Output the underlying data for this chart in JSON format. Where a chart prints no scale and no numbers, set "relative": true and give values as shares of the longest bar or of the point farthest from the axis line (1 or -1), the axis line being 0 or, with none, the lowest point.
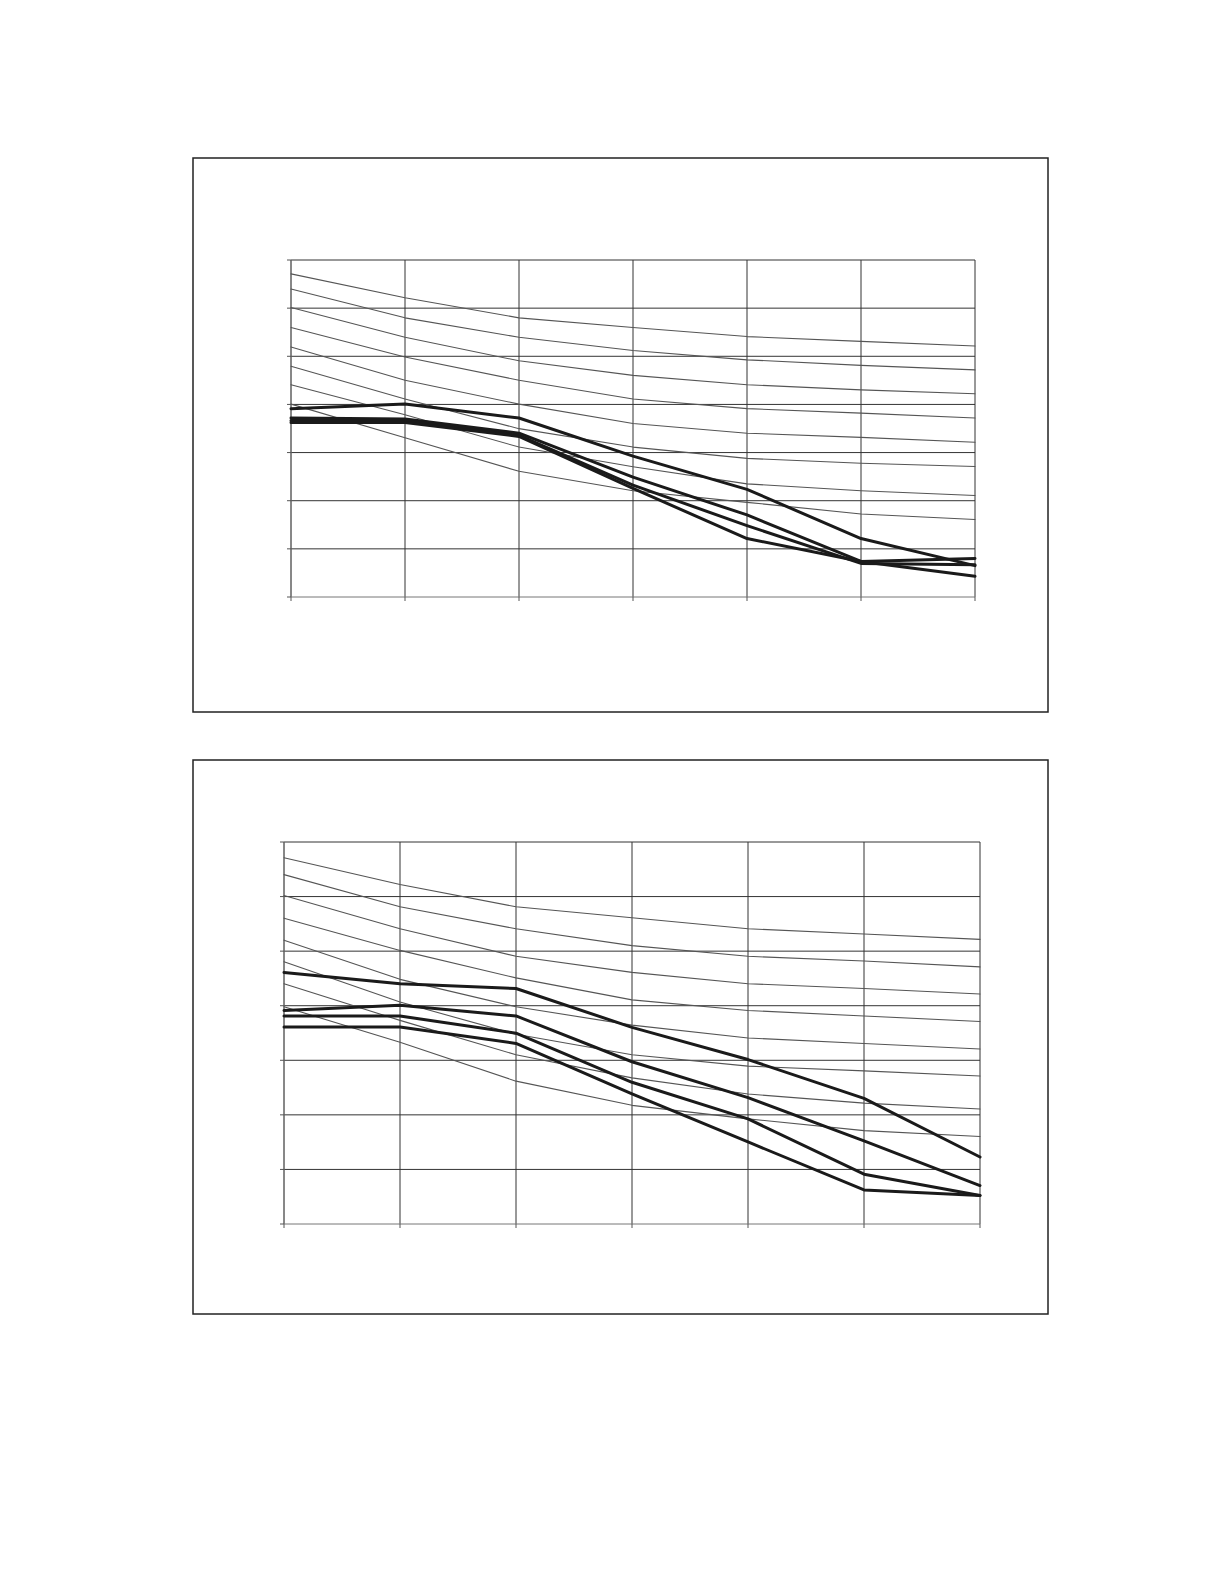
{
  "chart_data": [
    {
      "type": "line",
      "relative": true,
      "grid": true,
      "marker": "none",
      "line_style": "solid",
      "categories": [
        null,
        null,
        null,
        null,
        null,
        null,
        null
      ],
      "series": [
        {
          "color": "#555555",
          "values": [
            1.0,
            0.926,
            0.864,
            0.834,
            0.806,
            0.791,
            0.777
          ]
        },
        {
          "color": "#555555",
          "values": [
            0.953,
            0.864,
            0.804,
            0.763,
            0.734,
            0.717,
            0.703
          ]
        },
        {
          "color": "#555555",
          "values": [
            0.896,
            0.804,
            0.731,
            0.686,
            0.657,
            0.641,
            0.629
          ]
        },
        {
          "color": "#555555",
          "values": [
            0.834,
            0.743,
            0.671,
            0.613,
            0.583,
            0.569,
            0.554
          ]
        },
        {
          "color": "#555555",
          "values": [
            0.774,
            0.671,
            0.597,
            0.537,
            0.507,
            0.494,
            0.479
          ]
        },
        {
          "color": "#555555",
          "values": [
            0.714,
            0.613,
            0.521,
            0.464,
            0.429,
            0.414,
            0.404
          ]
        },
        {
          "color": "#555555",
          "values": [
            0.657,
            0.564,
            0.464,
            0.403,
            0.35,
            0.329,
            0.314
          ]
        },
        {
          "color": "#555555",
          "values": [
            0.597,
            0.493,
            0.389,
            0.329,
            0.293,
            0.257,
            0.24
          ]
        },
        {
          "color": "#1a1a1a",
          "values": [
            0.583,
            0.597,
            0.554,
            0.436,
            0.333,
            0.181,
            0.097
          ]
        },
        {
          "color": "#1a1a1a",
          "values": [
            0.554,
            0.551,
            0.507,
            0.371,
            0.254,
            0.11,
            0.119
          ]
        },
        {
          "color": "#1a1a1a",
          "values": [
            0.546,
            0.546,
            0.5,
            0.346,
            0.221,
            0.104,
            0.1
          ]
        },
        {
          "color": "#1a1a1a",
          "values": [
            0.54,
            0.54,
            0.497,
            0.336,
            0.181,
            0.11,
            0.064
          ]
        }
      ]
    },
    {
      "type": "line",
      "relative": true,
      "grid": true,
      "marker": "none",
      "line_style": "solid",
      "categories": [
        null,
        null,
        null,
        null,
        null,
        null,
        null
      ],
      "series": [
        {
          "color": "#555555",
          "values": [
            1.0,
            0.927,
            0.866,
            0.836,
            0.806,
            0.792,
            0.777
          ]
        },
        {
          "color": "#555555",
          "values": [
            0.954,
            0.866,
            0.806,
            0.76,
            0.731,
            0.718,
            0.702
          ]
        },
        {
          "color": "#555555",
          "values": [
            0.897,
            0.806,
            0.731,
            0.687,
            0.656,
            0.643,
            0.628
          ]
        },
        {
          "color": "#555555",
          "values": [
            0.835,
            0.747,
            0.672,
            0.612,
            0.583,
            0.568,
            0.553
          ]
        },
        {
          "color": "#555555",
          "values": [
            0.775,
            0.668,
            0.593,
            0.543,
            0.508,
            0.493,
            0.478
          ]
        },
        {
          "color": "#555555",
          "values": [
            0.716,
            0.606,
            0.518,
            0.462,
            0.431,
            0.418,
            0.404
          ]
        },
        {
          "color": "#555555",
          "values": [
            0.656,
            0.556,
            0.462,
            0.399,
            0.355,
            0.33,
            0.314
          ]
        },
        {
          "color": "#555555",
          "values": [
            0.593,
            0.496,
            0.39,
            0.324,
            0.287,
            0.255,
            0.239
          ]
        },
        {
          "color": "#1a1a1a",
          "values": [
            0.687,
            0.656,
            0.643,
            0.537,
            0.449,
            0.343,
            0.183
          ]
        },
        {
          "color": "#1a1a1a",
          "values": [
            0.583,
            0.597,
            0.568,
            0.443,
            0.345,
            0.227,
            0.105
          ]
        },
        {
          "color": "#1a1a1a",
          "values": [
            0.568,
            0.568,
            0.521,
            0.387,
            0.287,
            0.136,
            0.078
          ]
        },
        {
          "color": "#1a1a1a",
          "values": [
            0.538,
            0.538,
            0.493,
            0.355,
            0.224,
            0.093,
            0.078
          ]
        }
      ]
    }
  ]
}
